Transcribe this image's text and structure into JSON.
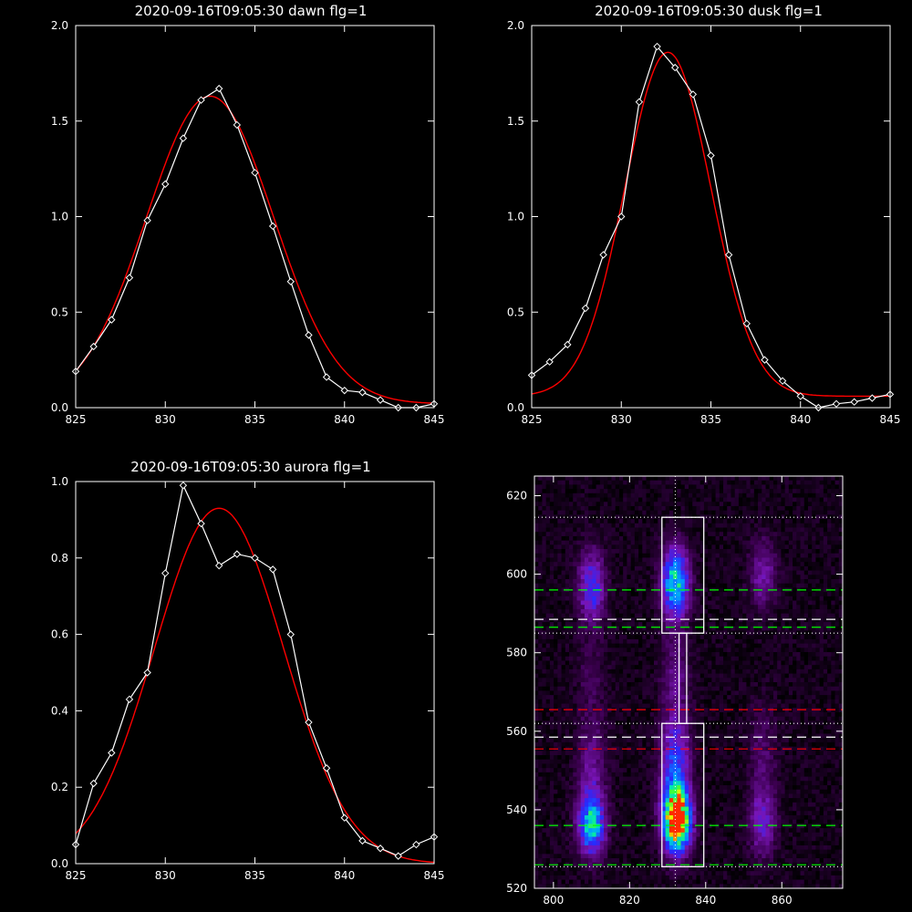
{
  "chart_data": [
    {
      "type": "line",
      "title": "2020-09-16T09:05:30 dawn flg=1",
      "xlim": [
        825,
        845
      ],
      "ylim": [
        0.0,
        2.0
      ],
      "xticks": [
        "825",
        "830",
        "835",
        "840",
        "845"
      ],
      "yticks": [
        "0.0",
        "0.5",
        "1.0",
        "1.5",
        "2.0"
      ],
      "colors": {
        "data": "#ffffff",
        "fit": "#ff0000"
      },
      "series": [
        {
          "x": [
            825,
            826,
            827,
            828,
            829,
            830,
            831,
            832,
            833,
            834,
            835,
            836,
            837,
            838,
            839,
            840,
            841,
            842,
            843,
            844,
            845
          ],
          "values": [
            0.19,
            0.32,
            0.46,
            0.68,
            0.98,
            1.17,
            1.41,
            1.61,
            1.67,
            1.48,
            1.23,
            0.95,
            0.66,
            0.38,
            0.16,
            0.09,
            0.08,
            0.04,
            0.0,
            0.0,
            0.02
          ],
          "marker": "diamond"
        }
      ],
      "fit": {
        "amplitude": 1.61,
        "center": 832.5,
        "sigma": 3.55,
        "offset": 0.02
      }
    },
    {
      "type": "line",
      "title": "2020-09-16T09:05:30 dusk flg=1",
      "xlim": [
        825,
        845
      ],
      "ylim": [
        0.0,
        2.0
      ],
      "xticks": [
        "825",
        "830",
        "835",
        "840",
        "845"
      ],
      "yticks": [
        "0.0",
        "0.5",
        "1.0",
        "1.5",
        "2.0"
      ],
      "colors": {
        "data": "#ffffff",
        "fit": "#ff0000"
      },
      "series": [
        {
          "x": [
            825,
            826,
            827,
            828,
            829,
            830,
            831,
            832,
            833,
            834,
            835,
            836,
            837,
            838,
            839,
            840,
            841,
            842,
            843,
            844,
            845
          ],
          "values": [
            0.17,
            0.24,
            0.33,
            0.52,
            0.8,
            1.0,
            1.6,
            1.89,
            1.78,
            1.64,
            1.32,
            0.8,
            0.44,
            0.25,
            0.14,
            0.06,
            0.0,
            0.02,
            0.03,
            0.05,
            0.07
          ],
          "marker": "diamond"
        }
      ],
      "fit": {
        "amplitude": 1.8,
        "center": 832.6,
        "sigma": 2.4,
        "offset": 0.06
      }
    },
    {
      "type": "line",
      "title": "2020-09-16T09:05:30 aurora flg=1",
      "xlim": [
        825,
        845
      ],
      "ylim": [
        0.0,
        1.0
      ],
      "xticks": [
        "825",
        "830",
        "835",
        "840",
        "845"
      ],
      "yticks": [
        "0.0",
        "0.2",
        "0.4",
        "0.6",
        "0.8",
        "1.0"
      ],
      "colors": {
        "data": "#ffffff",
        "fit": "#ff0000"
      },
      "series": [
        {
          "x": [
            825,
            826,
            827,
            828,
            829,
            830,
            831,
            832,
            833,
            834,
            835,
            836,
            837,
            838,
            839,
            840,
            841,
            842,
            843,
            844,
            845
          ],
          "values": [
            0.05,
            0.21,
            0.29,
            0.43,
            0.5,
            0.76,
            0.99,
            0.89,
            0.78,
            0.81,
            0.8,
            0.77,
            0.6,
            0.37,
            0.25,
            0.12,
            0.06,
            0.04,
            0.02,
            0.05,
            0.07
          ],
          "marker": "diamond"
        }
      ],
      "fit": {
        "amplitude": 0.93,
        "center": 833.0,
        "sigma": 3.6,
        "offset": 0.0
      }
    },
    {
      "type": "heatmap",
      "title": "",
      "xlim": [
        795,
        876
      ],
      "ylim": [
        520,
        625
      ],
      "xticks": [
        "800",
        "820",
        "840",
        "860"
      ],
      "yticks": [
        "520",
        "540",
        "560",
        "580",
        "600",
        "620"
      ],
      "colormap": "rainbow",
      "blobs": [
        {
          "x": 832.5,
          "y": 537.0,
          "amp": 1.0,
          "sx": 2.4,
          "sy": 5.0
        },
        {
          "x": 832.0,
          "y": 598.0,
          "amp": 0.65,
          "sx": 2.4,
          "sy": 6.0
        },
        {
          "x": 832.0,
          "y": 548.0,
          "amp": 0.45,
          "sx": 2.6,
          "sy": 10.0
        },
        {
          "x": 810.0,
          "y": 536.0,
          "amp": 0.55,
          "sx": 2.4,
          "sy": 5.0
        },
        {
          "x": 810.0,
          "y": 597.0,
          "amp": 0.38,
          "sx": 2.4,
          "sy": 6.0
        },
        {
          "x": 810.0,
          "y": 548.0,
          "amp": 0.2,
          "sx": 2.6,
          "sy": 10.0
        },
        {
          "x": 855.0,
          "y": 537.0,
          "amp": 0.28,
          "sx": 2.4,
          "sy": 6.0
        },
        {
          "x": 855.0,
          "y": 600.0,
          "amp": 0.22,
          "sx": 2.4,
          "sy": 6.0
        },
        {
          "x": 855.0,
          "y": 555.0,
          "amp": 0.12,
          "sx": 2.6,
          "sy": 8.0
        },
        {
          "x": 832.0,
          "y": 574.0,
          "amp": 0.15,
          "sx": 2.5,
          "sy": 9.0
        },
        {
          "x": 810.0,
          "y": 574.0,
          "amp": 0.08,
          "sx": 2.5,
          "sy": 9.0
        }
      ],
      "boxes": [
        {
          "x0": 828.5,
          "x1": 839.5,
          "y0": 585.0,
          "y1": 614.5
        },
        {
          "x0": 828.5,
          "x1": 839.5,
          "y0": 525.5,
          "y1": 562.0
        },
        {
          "x0": 833.0,
          "x1": 835.0,
          "y0": 562.0,
          "y1": 585.0
        }
      ],
      "hlines": [
        {
          "y": 614.5,
          "color": "#ffffff",
          "style": "dotted"
        },
        {
          "y": 596.0,
          "color": "#00ff00",
          "style": "dashed"
        },
        {
          "y": 588.5,
          "color": "#ffffff",
          "style": "dashed"
        },
        {
          "y": 586.5,
          "color": "#00ff00",
          "style": "dashed"
        },
        {
          "y": 585.0,
          "color": "#ffffff",
          "style": "dotted"
        },
        {
          "y": 565.5,
          "color": "#ff0000",
          "style": "dashed"
        },
        {
          "y": 562.0,
          "color": "#ffffff",
          "style": "dotted"
        },
        {
          "y": 558.5,
          "color": "#ffffff",
          "style": "dashed"
        },
        {
          "y": 555.5,
          "color": "#ff0000",
          "style": "dashed"
        },
        {
          "y": 536.0,
          "color": "#00ff00",
          "style": "dashed"
        },
        {
          "y": 526.0,
          "color": "#00ff00",
          "style": "dashed"
        },
        {
          "y": 525.5,
          "color": "#ffffff",
          "style": "dotted"
        }
      ],
      "vlines": [
        {
          "x": 832.0,
          "color": "#ffffff",
          "style": "dotted"
        }
      ]
    }
  ]
}
